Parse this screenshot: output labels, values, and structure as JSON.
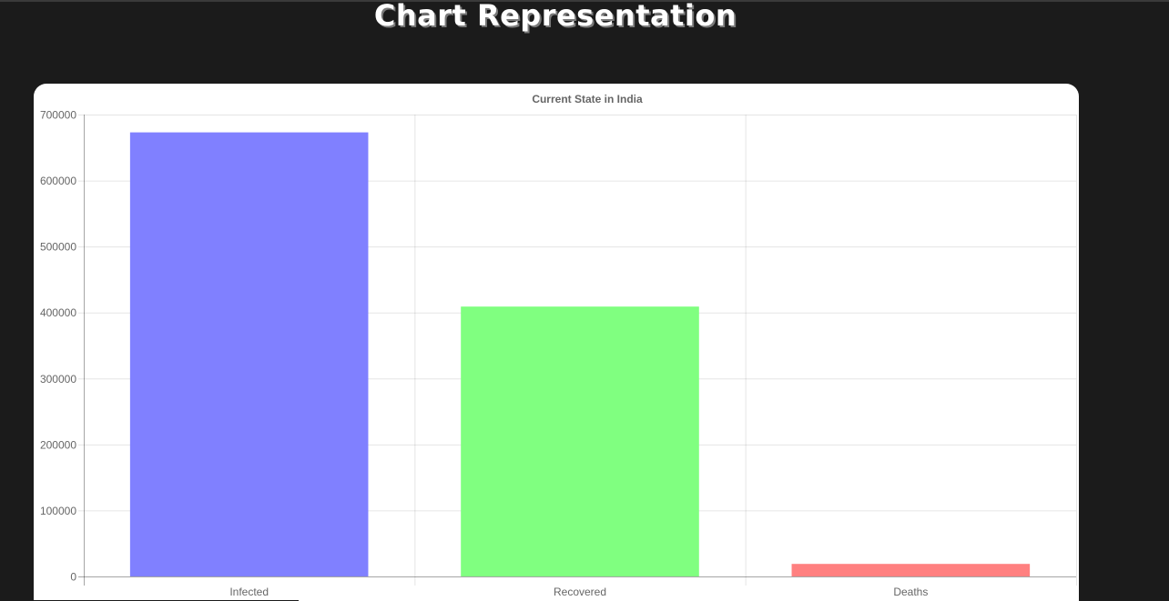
{
  "page": {
    "heading": "Chart Representation"
  },
  "chart_data": {
    "type": "bar",
    "title": "Current State in India",
    "categories": [
      "Infected",
      "Recovered",
      "Deaths"
    ],
    "values": [
      673000,
      409000,
      19000
    ],
    "colors": [
      "#8080ff",
      "#80ff80",
      "#ff8080"
    ],
    "ylim": [
      0,
      700000
    ],
    "yticks": [
      "0",
      "100000",
      "200000",
      "300000",
      "400000",
      "500000",
      "600000",
      "700000"
    ],
    "xlabel": "",
    "ylabel": "",
    "grid": true,
    "legend": "none"
  }
}
